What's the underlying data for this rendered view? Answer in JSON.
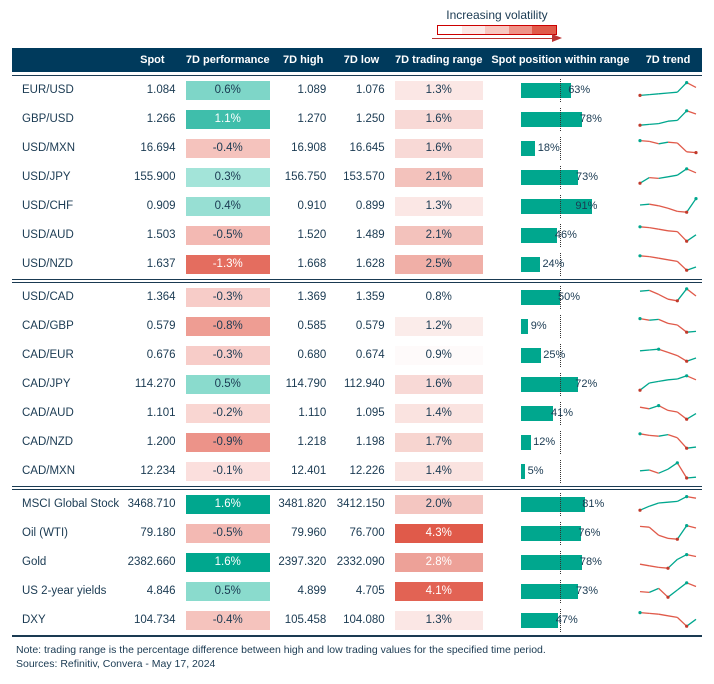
{
  "legend": {
    "label": "Increasing volatility",
    "gradient": [
      "#ffffff",
      "#fce8e6",
      "#f8c7c0",
      "#ef9287",
      "#e05a4a"
    ]
  },
  "colors": {
    "header_bg": "#003a5c",
    "header_fg": "#ffffff",
    "text": "#1a3a52",
    "pos_bar": "#00a78e",
    "trend_up": "#00a78e",
    "trend_down": "#e05a4a",
    "trend_dot_up": "#00a78e",
    "trend_dot_down": "#c0392b"
  },
  "heatmap": {
    "perf": {
      "min": -1.5,
      "max": 1.6,
      "neg_light": "#fde9e7",
      "neg_dark": "#e05a4a",
      "pos_light": "#c9f2ea",
      "pos_dark": "#00a78e",
      "zero": "#fef6f5"
    },
    "range": {
      "min": 0.8,
      "max": 4.3,
      "light": "#ffffff",
      "dark": "#e05a4a"
    }
  },
  "columns": [
    "",
    "Spot",
    "7D performance",
    "7D high",
    "7D low",
    "7D trading range",
    "Spot position within range",
    "7D trend"
  ],
  "groups": [
    {
      "rows": [
        {
          "label": "EUR/USD",
          "spot": "1.084",
          "perf": 0.6,
          "high": "1.089",
          "low": "1.076",
          "range": 1.3,
          "pos": 63,
          "trend": [
            0.1,
            0.15,
            0.2,
            0.25,
            0.3,
            0.9,
            0.6
          ]
        },
        {
          "label": "GBP/USD",
          "spot": "1.266",
          "perf": 1.1,
          "high": "1.270",
          "low": "1.250",
          "range": 1.6,
          "pos": 78,
          "trend": [
            0.05,
            0.1,
            0.15,
            0.3,
            0.35,
            0.95,
            0.75
          ]
        },
        {
          "label": "USD/MXN",
          "spot": "16.694",
          "perf": -0.4,
          "high": "16.908",
          "low": "16.645",
          "range": 1.6,
          "pos": 18,
          "trend": [
            0.9,
            0.85,
            0.7,
            0.8,
            0.75,
            0.2,
            0.15
          ]
        },
        {
          "label": "USD/JPY",
          "spot": "155.900",
          "perf": 0.3,
          "high": "156.750",
          "low": "153.570",
          "range": 2.1,
          "pos": 73,
          "trend": [
            0.05,
            0.4,
            0.35,
            0.45,
            0.55,
            0.95,
            0.7
          ]
        },
        {
          "label": "USD/CHF",
          "spot": "0.909",
          "perf": 0.4,
          "high": "0.910",
          "low": "0.899",
          "range": 1.3,
          "pos": 91,
          "trend": [
            0.5,
            0.55,
            0.45,
            0.3,
            0.1,
            0.05,
            0.9
          ]
        },
        {
          "label": "USD/AUD",
          "spot": "1.503",
          "perf": -0.5,
          "high": "1.520",
          "low": "1.489",
          "range": 2.1,
          "pos": 46,
          "trend": [
            0.95,
            0.9,
            0.8,
            0.7,
            0.65,
            0.05,
            0.45
          ]
        },
        {
          "label": "USD/NZD",
          "spot": "1.637",
          "perf": -1.3,
          "high": "1.668",
          "low": "1.628",
          "range": 2.5,
          "pos": 24,
          "trend": [
            0.95,
            0.9,
            0.8,
            0.7,
            0.6,
            0.05,
            0.25
          ]
        }
      ]
    },
    {
      "rows": [
        {
          "label": "USD/CAD",
          "spot": "1.364",
          "perf": -0.3,
          "high": "1.369",
          "low": "1.359",
          "range": 0.8,
          "pos": 50,
          "trend": [
            0.8,
            0.85,
            0.6,
            0.3,
            0.2,
            0.95,
            0.5
          ]
        },
        {
          "label": "CAD/GBP",
          "spot": "0.579",
          "perf": -0.8,
          "high": "0.585",
          "low": "0.579",
          "range": 1.2,
          "pos": 9,
          "trend": [
            0.9,
            0.8,
            0.85,
            0.6,
            0.5,
            0.05,
            0.1
          ]
        },
        {
          "label": "CAD/EUR",
          "spot": "0.676",
          "perf": -0.3,
          "high": "0.680",
          "low": "0.674",
          "range": 0.9,
          "pos": 25,
          "trend": [
            0.7,
            0.75,
            0.8,
            0.6,
            0.4,
            0.05,
            0.25
          ]
        },
        {
          "label": "CAD/JPY",
          "spot": "114.270",
          "perf": 0.5,
          "high": "114.790",
          "low": "112.940",
          "range": 1.6,
          "pos": 72,
          "trend": [
            0.05,
            0.5,
            0.6,
            0.7,
            0.75,
            0.95,
            0.7
          ]
        },
        {
          "label": "CAD/AUD",
          "spot": "1.101",
          "perf": -0.2,
          "high": "1.110",
          "low": "1.095",
          "range": 1.4,
          "pos": 41,
          "trend": [
            0.8,
            0.7,
            0.9,
            0.6,
            0.5,
            0.05,
            0.4
          ]
        },
        {
          "label": "CAD/NZD",
          "spot": "1.200",
          "perf": -0.9,
          "high": "1.218",
          "low": "1.198",
          "range": 1.7,
          "pos": 12,
          "trend": [
            0.95,
            0.85,
            0.8,
            0.9,
            0.7,
            0.05,
            0.12
          ]
        },
        {
          "label": "CAD/MXN",
          "spot": "12.234",
          "perf": -0.1,
          "high": "12.401",
          "low": "12.226",
          "range": 1.4,
          "pos": 5,
          "trend": [
            0.45,
            0.5,
            0.3,
            0.55,
            0.95,
            0.0,
            0.05
          ]
        }
      ]
    },
    {
      "rows": [
        {
          "label": "MSCI Global Stock",
          "spot": "3468.710",
          "perf": 1.6,
          "high": "3481.820",
          "low": "3412.150",
          "range": 2.0,
          "pos": 81,
          "trend": [
            0.05,
            0.3,
            0.5,
            0.55,
            0.6,
            0.9,
            0.8
          ]
        },
        {
          "label": "Oil (WTI)",
          "spot": "79.180",
          "perf": -0.5,
          "high": "79.960",
          "low": "76.700",
          "range": 4.3,
          "pos": 76,
          "trend": [
            0.85,
            0.8,
            0.3,
            0.1,
            0.05,
            0.9,
            0.75
          ]
        },
        {
          "label": "Gold",
          "spot": "2382.660",
          "perf": 1.6,
          "high": "2397.320",
          "low": "2332.090",
          "range": 2.8,
          "pos": 78,
          "trend": [
            0.3,
            0.2,
            0.1,
            0.05,
            0.6,
            0.9,
            0.78
          ]
        },
        {
          "label": "US 2-year yields",
          "spot": "4.846",
          "perf": 0.5,
          "high": "4.899",
          "low": "4.705",
          "range": 4.1,
          "pos": 73,
          "trend": [
            0.4,
            0.35,
            0.6,
            0.05,
            0.5,
            0.95,
            0.72
          ]
        },
        {
          "label": "DXY",
          "spot": "104.734",
          "perf": -0.4,
          "high": "105.458",
          "low": "104.080",
          "range": 1.3,
          "pos": 47,
          "trend": [
            0.9,
            0.85,
            0.8,
            0.7,
            0.6,
            0.05,
            0.48
          ]
        }
      ]
    }
  ],
  "footnote_line1": "Note: trading range is the percentage difference between high and low trading values for the specified time period.",
  "footnote_line2": "Sources: Refinitiv, Convera - May 17, 2024"
}
